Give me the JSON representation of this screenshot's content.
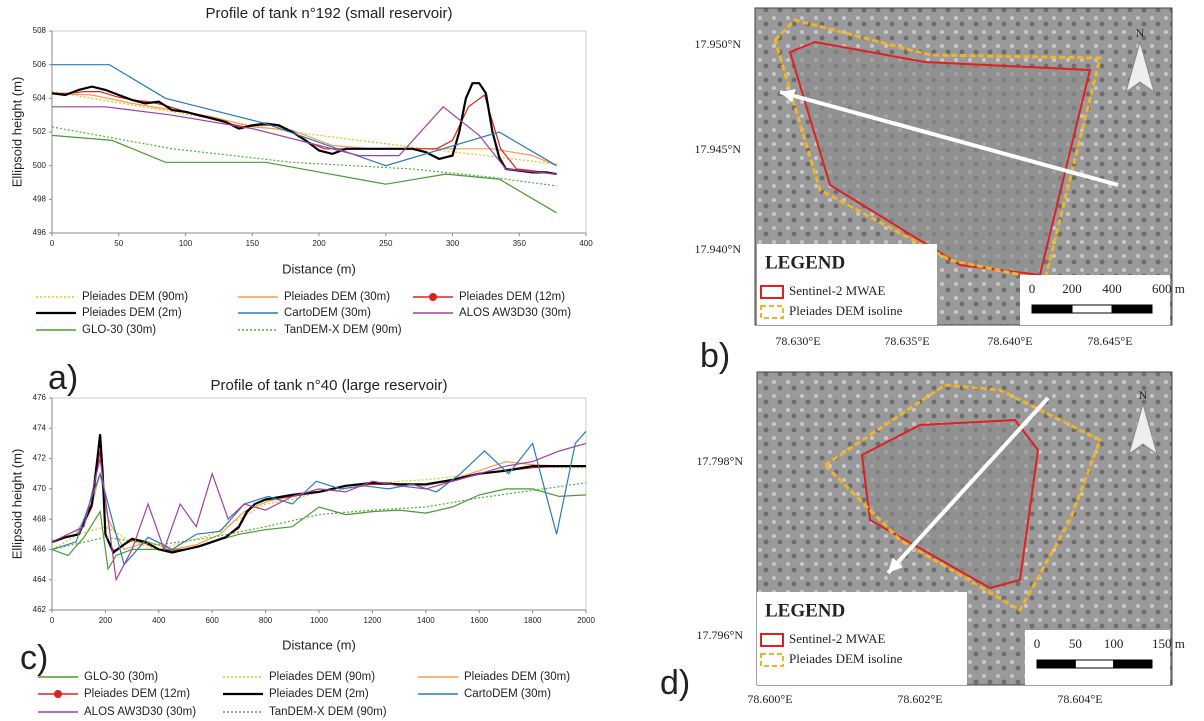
{
  "chart_data": [
    {
      "type": "line",
      "panel": "a)",
      "title": "Profile of tank n°192 (small reservoir)",
      "x_label": "Distance (m)",
      "y_label": "Ellipsoid height (m)",
      "xlim": [
        0,
        400
      ],
      "xticks": [
        0,
        50,
        100,
        150,
        200,
        250,
        300,
        350,
        400
      ],
      "ylim": [
        496,
        508
      ],
      "yticks": [
        496,
        498,
        500,
        502,
        504,
        506,
        508
      ],
      "grid": false,
      "series": [
        {
          "name": "Pleiades DEM (90m)",
          "color": "#e6c020",
          "dashed": true,
          "x": [
            0,
            90,
            180,
            270,
            378
          ],
          "values": [
            504.4,
            503.2,
            502.0,
            501.1,
            500.1
          ]
        },
        {
          "name": "Pleiades DEM (30m)",
          "color": "#f39c4a",
          "x": [
            0,
            30,
            60,
            90,
            120,
            150,
            180,
            210,
            240,
            270,
            300,
            330,
            360,
            378
          ],
          "values": [
            504.3,
            504.2,
            503.7,
            503.3,
            502.9,
            502.3,
            502.1,
            501.2,
            501.0,
            501.0,
            501.0,
            501.0,
            500.6,
            500.0
          ]
        },
        {
          "name": "Pleiades DEM (12m)",
          "color": "#e02020",
          "marker": true,
          "x": [
            0,
            12,
            24,
            36,
            48,
            60,
            72,
            84,
            96,
            108,
            120,
            132,
            144,
            156,
            168,
            180,
            192,
            204,
            216,
            228,
            240,
            252,
            264,
            276,
            288,
            300,
            312,
            324,
            336,
            348,
            360,
            378
          ],
          "values": [
            504.3,
            504.3,
            504.4,
            504.4,
            504.1,
            503.9,
            503.8,
            503.6,
            503.3,
            503.0,
            502.8,
            502.5,
            502.3,
            502.4,
            502.4,
            502.0,
            501.4,
            501.0,
            501.0,
            501.0,
            501.0,
            501.0,
            501.0,
            501.0,
            501.0,
            501.5,
            503.5,
            504.2,
            501.0,
            499.8,
            499.7,
            499.5
          ]
        },
        {
          "name": "Pleiades DEM (2m)",
          "color": "#000000",
          "width": 2.2,
          "x": [
            0,
            10,
            20,
            30,
            40,
            50,
            60,
            70,
            80,
            90,
            100,
            110,
            120,
            130,
            140,
            150,
            160,
            170,
            180,
            190,
            200,
            210,
            220,
            230,
            240,
            250,
            260,
            270,
            280,
            290,
            300,
            305,
            310,
            315,
            320,
            325,
            330,
            335,
            340,
            350,
            360,
            370,
            378
          ],
          "values": [
            504.3,
            504.2,
            504.5,
            504.7,
            504.5,
            504.2,
            503.9,
            503.7,
            503.8,
            503.3,
            503.2,
            503.0,
            502.8,
            502.6,
            502.2,
            502.4,
            502.5,
            502.4,
            502.0,
            501.5,
            500.9,
            500.7,
            501.0,
            501.0,
            501.0,
            501.0,
            501.0,
            501.0,
            500.8,
            500.4,
            500.6,
            502.0,
            504.0,
            504.9,
            504.9,
            504.3,
            502.0,
            500.5,
            499.8,
            499.7,
            499.6,
            499.6,
            499.5
          ]
        },
        {
          "name": "CartoDEM (30m)",
          "color": "#2a7ab8",
          "x": [
            0,
            43,
            85,
            160,
            250,
            335,
            378
          ],
          "values": [
            506.0,
            506.0,
            504.0,
            502.5,
            500.0,
            502.0,
            500.0
          ]
        },
        {
          "name": "ALOS AW3D30 (30m)",
          "color": "#a040a0",
          "x": [
            0,
            40,
            90,
            150,
            230,
            260,
            293,
            320,
            340,
            378
          ],
          "values": [
            503.5,
            503.5,
            503.0,
            502.2,
            500.6,
            500.6,
            503.5,
            501.8,
            499.8,
            499.5
          ]
        },
        {
          "name": "GLO-30 (30m)",
          "color": "#4a9a30",
          "x": [
            0,
            45,
            85,
            160,
            250,
            295,
            335,
            378
          ],
          "values": [
            501.8,
            501.5,
            500.2,
            500.2,
            498.9,
            499.5,
            499.2,
            497.2
          ]
        },
        {
          "name": "TanDEM-X DEM (90m)",
          "color": "#4ab040",
          "dashed": true,
          "x": [
            0,
            90,
            180,
            270,
            330,
            378
          ],
          "values": [
            502.3,
            501.0,
            500.2,
            499.8,
            499.3,
            498.8
          ]
        }
      ]
    },
    {
      "type": "line",
      "panel": "c)",
      "title": "Profile of tank n°40 (large reservoir)",
      "x_label": "Distance (m)",
      "y_label": "Ellipsoid height (m)",
      "xlim": [
        0,
        2000
      ],
      "xticks": [
        0,
        200,
        400,
        600,
        800,
        1000,
        1200,
        1400,
        1600,
        1800,
        2000
      ],
      "ylim": [
        462,
        476
      ],
      "yticks": [
        462,
        464,
        466,
        468,
        470,
        472,
        474,
        476
      ],
      "grid": false,
      "series": [
        {
          "name": "GLO-30 (30m)",
          "color": "#4a9a30",
          "x": [
            0,
            60,
            120,
            180,
            210,
            240,
            300,
            400,
            500,
            600,
            700,
            800,
            900,
            1000,
            1100,
            1200,
            1300,
            1400,
            1500,
            1600,
            1700,
            1800,
            1900,
            2000
          ],
          "values": [
            466.0,
            465.6,
            466.8,
            468.5,
            464.7,
            465.6,
            466.0,
            466.0,
            466.0,
            466.5,
            467.0,
            467.3,
            467.5,
            468.8,
            468.3,
            468.5,
            468.6,
            468.4,
            468.8,
            469.6,
            470.0,
            470.0,
            469.5,
            469.6
          ]
        },
        {
          "name": "Pleiades DEM (90m)",
          "color": "#e6c020",
          "dashed": true,
          "x": [
            0,
            100,
            200,
            300,
            400,
            500,
            600,
            700,
            800,
            900,
            1000,
            1100,
            1200,
            1300,
            1400,
            1500,
            1600,
            1700,
            1800,
            1900,
            2000
          ],
          "values": [
            466.0,
            467.0,
            467.5,
            466.5,
            466.0,
            466.5,
            467.0,
            468.0,
            469.0,
            469.3,
            469.8,
            470.0,
            470.3,
            470.5,
            470.6,
            470.8,
            471.0,
            471.3,
            471.5,
            471.4,
            471.4
          ]
        },
        {
          "name": "Pleiades DEM (30m)",
          "color": "#f39c4a",
          "x": [
            0,
            90,
            150,
            180,
            210,
            270,
            360,
            450,
            540,
            630,
            720,
            810,
            900,
            1000,
            1100,
            1200,
            1300,
            1400,
            1500,
            1600,
            1700,
            1800,
            1900,
            2000
          ],
          "values": [
            466.5,
            467.0,
            469.0,
            471.0,
            468.0,
            466.0,
            466.5,
            466.0,
            466.3,
            467.0,
            468.5,
            469.2,
            469.5,
            469.8,
            470.2,
            470.3,
            470.3,
            470.2,
            470.6,
            471.2,
            471.8,
            471.6,
            471.5,
            471.5
          ]
        },
        {
          "name": "Pleiades DEM (12m)",
          "color": "#e02020",
          "marker": true,
          "x": [
            0,
            50,
            100,
            150,
            170,
            180,
            190,
            200,
            230,
            260,
            300,
            350,
            400,
            450,
            500,
            550,
            600,
            650,
            700,
            730,
            760,
            800,
            900,
            1000,
            1100,
            1200,
            1300,
            1400,
            1500,
            1600,
            1700,
            1800,
            1900,
            2000
          ],
          "values": [
            466.5,
            466.8,
            467.0,
            468.8,
            471.5,
            472.5,
            470.5,
            467.0,
            465.9,
            466.2,
            466.6,
            466.4,
            466.0,
            465.9,
            466.0,
            466.2,
            466.5,
            466.8,
            467.4,
            468.4,
            469.0,
            469.3,
            469.5,
            469.8,
            470.2,
            470.3,
            470.3,
            470.3,
            470.5,
            471.0,
            471.2,
            471.4,
            471.5,
            471.5
          ]
        },
        {
          "name": "Pleiades DEM (2m)",
          "color": "#000000",
          "width": 2.2,
          "x": [
            0,
            50,
            100,
            150,
            170,
            180,
            190,
            200,
            230,
            260,
            300,
            350,
            400,
            450,
            500,
            550,
            600,
            650,
            700,
            730,
            760,
            800,
            900,
            1000,
            1100,
            1200,
            1300,
            1400,
            1500,
            1600,
            1700,
            1800,
            1900,
            2000
          ],
          "values": [
            466.5,
            466.8,
            467.0,
            469.0,
            472.0,
            473.6,
            471.0,
            467.0,
            465.8,
            466.2,
            466.7,
            466.5,
            466.0,
            465.8,
            466.0,
            466.2,
            466.5,
            466.8,
            467.5,
            468.5,
            469.0,
            469.3,
            469.6,
            469.8,
            470.2,
            470.4,
            470.3,
            470.3,
            470.6,
            471.0,
            471.2,
            471.5,
            471.5,
            471.5
          ]
        },
        {
          "name": "CartoDEM (30m)",
          "color": "#2a7ab8",
          "x": [
            0,
            90,
            180,
            270,
            360,
            450,
            540,
            630,
            720,
            810,
            900,
            990,
            1080,
            1170,
            1260,
            1350,
            1440,
            1530,
            1620,
            1710,
            1800,
            1890,
            1960,
            2000
          ],
          "values": [
            466.0,
            466.5,
            471.0,
            465.0,
            466.8,
            466.0,
            467.0,
            467.2,
            469.0,
            469.5,
            469.0,
            470.5,
            470.0,
            470.2,
            470.0,
            470.3,
            469.8,
            471.0,
            472.5,
            471.0,
            473.0,
            467.0,
            473.0,
            473.8
          ]
        },
        {
          "name": "ALOS AW3D30 (30m)",
          "color": "#a040a0",
          "x": [
            0,
            60,
            120,
            180,
            240,
            300,
            360,
            420,
            480,
            540,
            600,
            660,
            720,
            800,
            900,
            1000,
            1100,
            1200,
            1300,
            1400,
            1500,
            1600,
            1700,
            1800,
            1900,
            2000
          ],
          "values": [
            466.5,
            467.0,
            467.5,
            472.0,
            464.0,
            466.0,
            469.0,
            466.0,
            469.0,
            467.5,
            471.0,
            468.0,
            469.0,
            468.6,
            469.5,
            470.0,
            469.8,
            470.5,
            470.2,
            470.0,
            470.5,
            471.0,
            471.5,
            471.8,
            472.5,
            473.0
          ]
        },
        {
          "name": "TanDEM-X DEM (90m)",
          "color": "#4ab040",
          "dashed": true,
          "x": [
            0,
            200,
            400,
            600,
            800,
            1000,
            1200,
            1400,
            1600,
            1800,
            2000
          ],
          "values": [
            466.0,
            466.8,
            466.3,
            466.8,
            467.5,
            468.3,
            468.6,
            468.8,
            469.4,
            469.9,
            470.4
          ]
        }
      ]
    }
  ],
  "maps": [
    {
      "panel": "b)",
      "lat_labels": [
        "17.950°N",
        "17.945°N",
        "17.940°N"
      ],
      "lon_labels": [
        "78.630°E",
        "78.635°E",
        "78.640°E",
        "78.645°E"
      ],
      "north": "N",
      "legend_title": "LEGEND",
      "legend_items": [
        "Sentinel-2 MWAE",
        "Pleiades DEM isoline"
      ],
      "scale_labels": [
        "0",
        "200",
        "400",
        "600 m"
      ]
    },
    {
      "panel": "d)",
      "lat_labels": [
        "17.798°N",
        "17.796°N"
      ],
      "lon_labels": [
        "78.600°E",
        "78.602°E",
        "78.604°E"
      ],
      "north": "N",
      "legend_title": "LEGEND",
      "legend_items": [
        "Sentinel-2 MWAE",
        "Pleiades DEM isoline"
      ],
      "scale_labels": [
        "0",
        "50",
        "100",
        "150 m"
      ]
    }
  ]
}
